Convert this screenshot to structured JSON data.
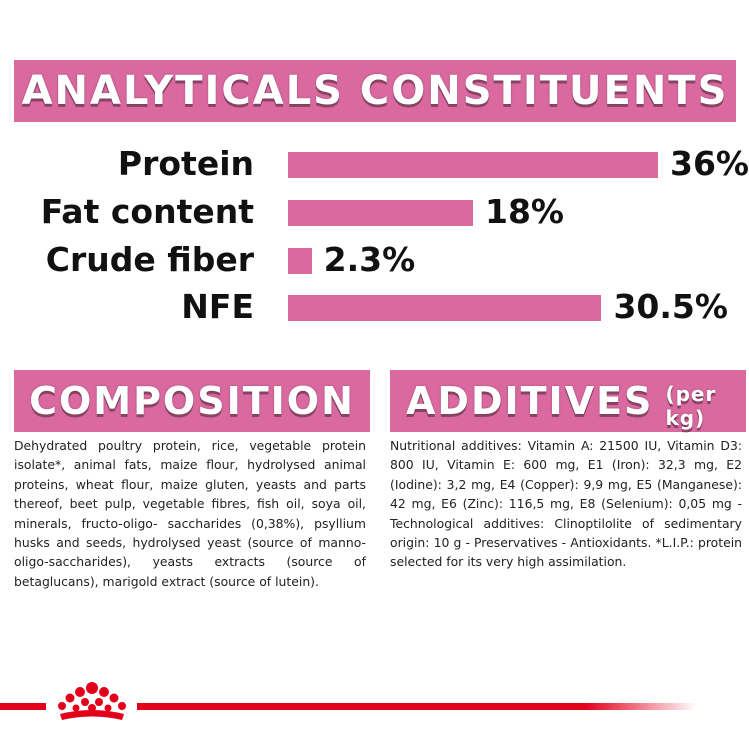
{
  "colors": {
    "pink": "#d9699f",
    "text": "#111111",
    "brand_red": "#e2001a"
  },
  "analytical": {
    "title": "ANALYTICALS CONSTITUENTS",
    "rows": [
      {
        "label": "Protein",
        "value": "36%",
        "amount": 36
      },
      {
        "label": "Fat content",
        "value": "18%",
        "amount": 18
      },
      {
        "label": "Crude fiber",
        "value": "2.3%",
        "amount": 2.3
      },
      {
        "label": "NFE",
        "value": "30.5%",
        "amount": 30.5
      }
    ]
  },
  "composition": {
    "title": "COMPOSITION",
    "text": "Dehydrated poultry protein, rice, vegetable protein isolate*, animal fats, maize flour, hydrolysed animal proteins, wheat flour, maize gluten, yeasts and parts thereof, beet pulp, vegetable fibres, fish oil, soya oil, minerals, fructo-oligo- saccharides (0,38%), psyllium husks and seeds, hydrolysed yeast (source of manno-oligo-saccharides), yeasts extracts (source of betaglucans), marigold extract (source of lutein)."
  },
  "additives": {
    "title": "ADDITIVES",
    "subtitle": "(per kg)",
    "text": "Nutritional additives: Vitamin A: 21500 IU, Vitamin D3: 800 IU, Vitamin E: 600 mg, E1 (Iron): 32,3 mg, E2 (Iodine): 3,2 mg, E4 (Copper): 9,9 mg, E5 (Manganese): 42 mg, E6 (Zinc): 116,5 mg, E8 (Selenium): 0,05 mg - Technological additives: Clinoptilolite of sedimentary origin: 10 g - Preservatives - Antioxidants. *L.I.P.: protein selected for its very high assimilation."
  },
  "footer": {
    "logo_icon": "royal-canin-crown-icon"
  }
}
